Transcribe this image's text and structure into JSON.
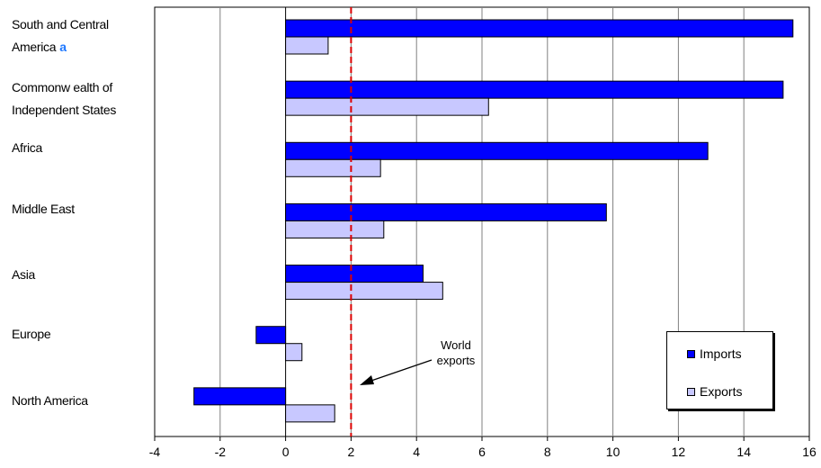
{
  "colors": {
    "imports": "#0000ff",
    "exports": "#c8c8ff",
    "world_line": "#dd0000",
    "grid": "#808080"
  },
  "chart_data": {
    "type": "bar",
    "orientation": "horizontal",
    "categories": [
      "South and Central America",
      "Commonwealth of Independent States",
      "Africa",
      "Middle East",
      "Asia",
      "Europe",
      "North America"
    ],
    "category_lines": [
      [
        "South and Central",
        "America"
      ],
      [
        "Commonw ealth of",
        "Independent States"
      ],
      [
        "Africa"
      ],
      [
        "Middle East"
      ],
      [
        "Asia"
      ],
      [
        "Europe"
      ],
      [
        "North America"
      ]
    ],
    "category_marks": [
      "a",
      "",
      "",
      "",
      "",
      "",
      ""
    ],
    "series": [
      {
        "name": "Imports",
        "values": [
          15.5,
          15.2,
          12.9,
          9.8,
          4.2,
          -0.9,
          -2.8
        ]
      },
      {
        "name": "Exports",
        "values": [
          1.3,
          6.2,
          2.9,
          3.0,
          4.8,
          0.5,
          1.5
        ]
      }
    ],
    "xlim": [
      -4,
      16
    ],
    "xticks": [
      -4,
      -2,
      0,
      2,
      4,
      6,
      8,
      10,
      12,
      14,
      16
    ],
    "grid": "vertical",
    "reference_line": {
      "value": 2,
      "label": [
        "World",
        "exports"
      ]
    },
    "legend_position": "bottom-right"
  }
}
